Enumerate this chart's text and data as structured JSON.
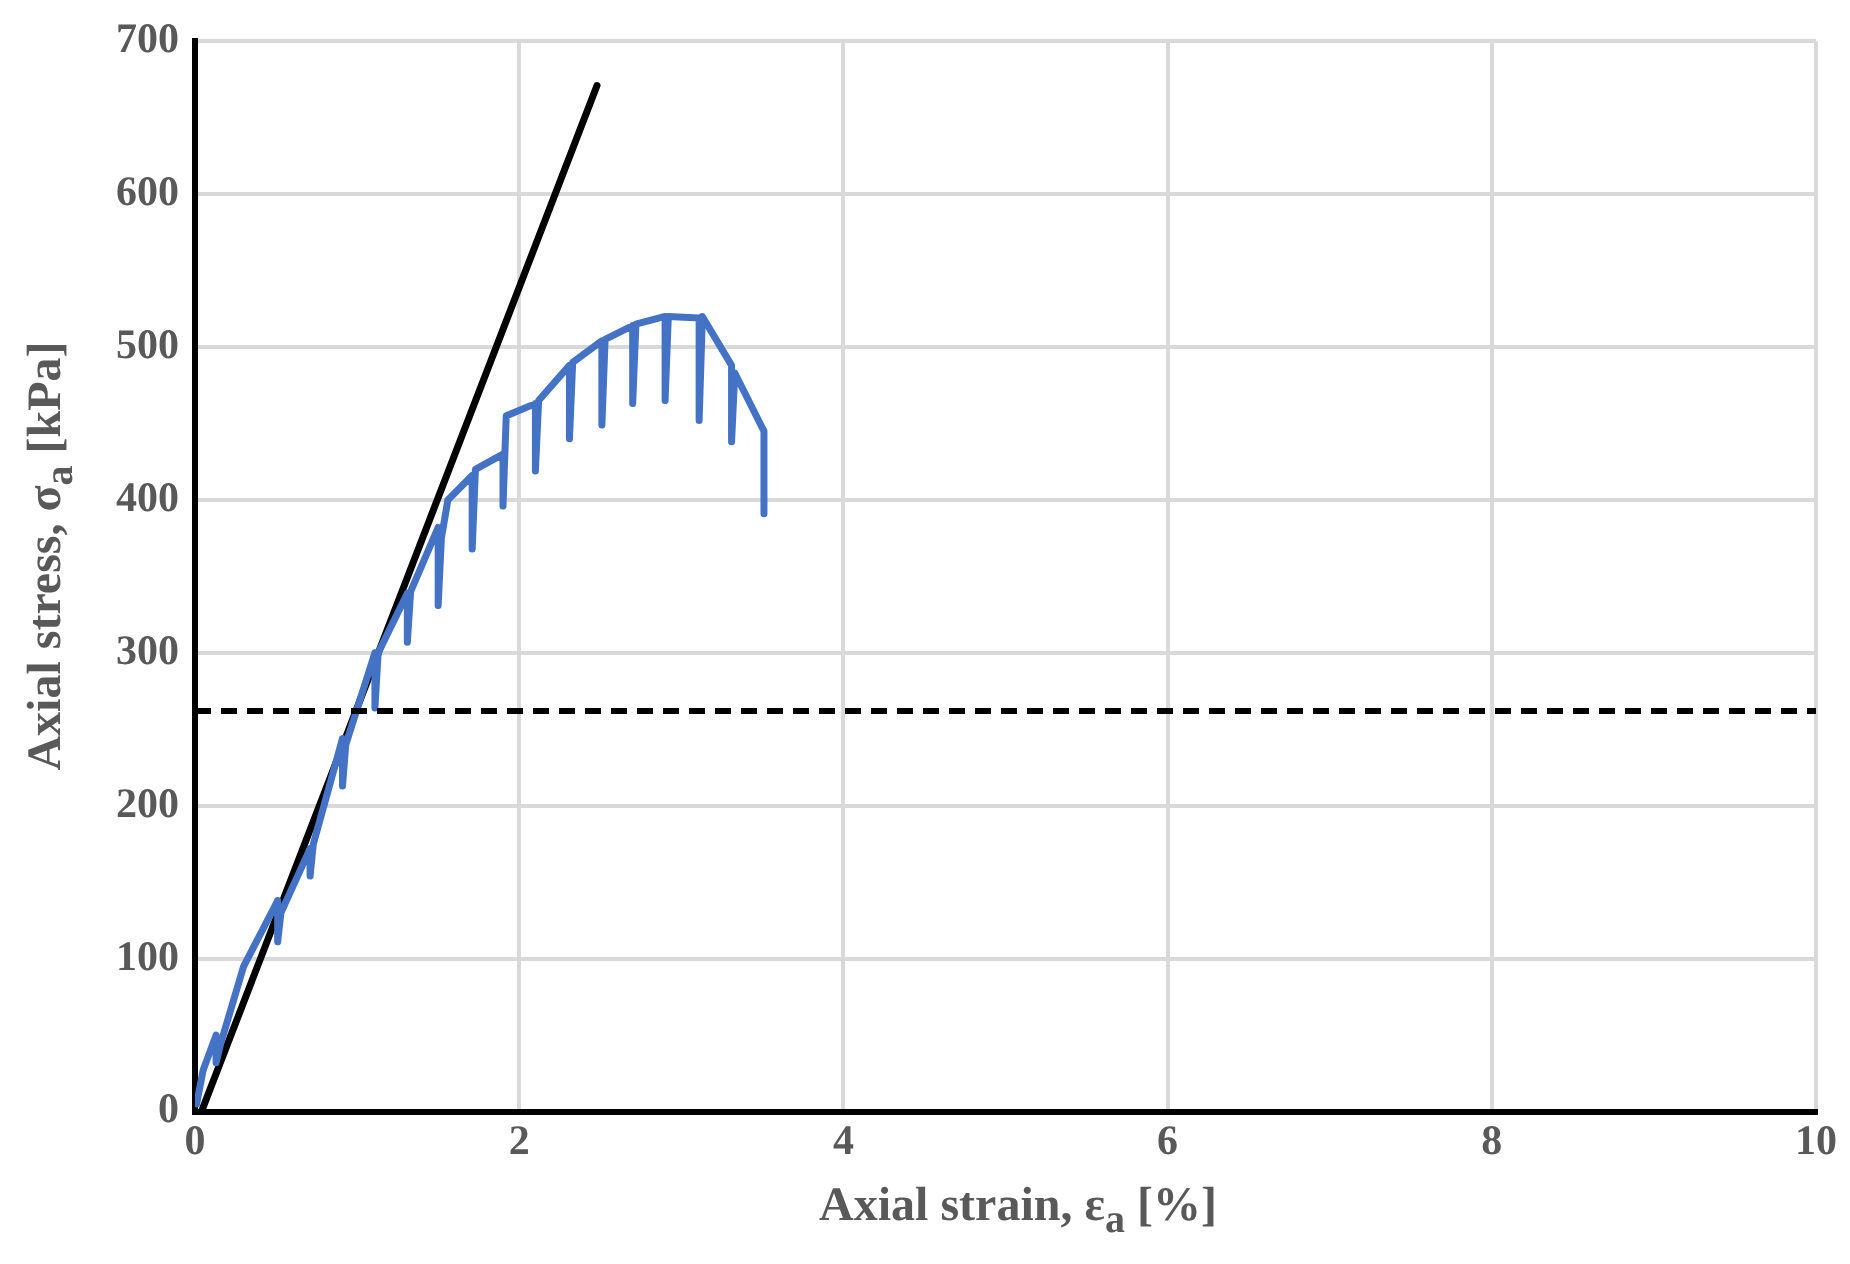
{
  "chart_data": {
    "type": "line",
    "xlabel": "Axial strain, ε$_{a}$ [%]",
    "ylabel": "Axial stress, σ$_{a}$ [kPa]",
    "xlim": [
      0,
      10
    ],
    "xticks": [
      0,
      2,
      4,
      6,
      8,
      10
    ],
    "ylim": [
      0,
      700
    ],
    "yticks": [
      0,
      100,
      200,
      300,
      400,
      500,
      600,
      700
    ],
    "grid": true,
    "legend": false,
    "marker": "none",
    "line_style": "solid",
    "series": [
      {
        "color": "#4472c4",
        "x": [
          0.01,
          0.05,
          0.13,
          0.13,
          0.16,
          0.3,
          0.51,
          0.51,
          0.53,
          0.71,
          0.71,
          0.73,
          0.91,
          0.91,
          0.93,
          1.11,
          1.11,
          1.13,
          1.31,
          1.31,
          1.33,
          1.5,
          1.5,
          1.52,
          1.56,
          1.71,
          1.71,
          1.73,
          1.9,
          1.9,
          1.92,
          2.1,
          2.1,
          2.12,
          2.31,
          2.31,
          2.33,
          2.51,
          2.51,
          2.53,
          2.7,
          2.7,
          2.72,
          2.9,
          2.9,
          2.92,
          3.11,
          3.11,
          3.13,
          3.31,
          3.31,
          3.33,
          3.51,
          3.51
        ],
        "values": [
          5,
          27,
          50,
          32,
          45,
          95,
          138,
          111,
          130,
          172,
          154,
          175,
          244,
          213,
          240,
          300,
          264,
          300,
          339,
          307,
          340,
          382,
          331,
          375,
          400,
          416,
          368,
          420,
          430,
          396,
          455,
          463,
          419,
          465,
          488,
          440,
          490,
          504,
          449,
          505,
          514,
          463,
          515,
          520,
          465,
          520,
          519,
          452,
          520,
          488,
          438,
          483,
          445,
          391
        ]
      },
      {
        "color": "#000000",
        "x": [
          0.04,
          2.48
        ],
        "values": [
          0,
          671
        ]
      }
    ],
    "ref_lines": [
      {
        "axis": "y",
        "value": 262,
        "color": "#000000",
        "line_style": "dashed"
      }
    ]
  }
}
